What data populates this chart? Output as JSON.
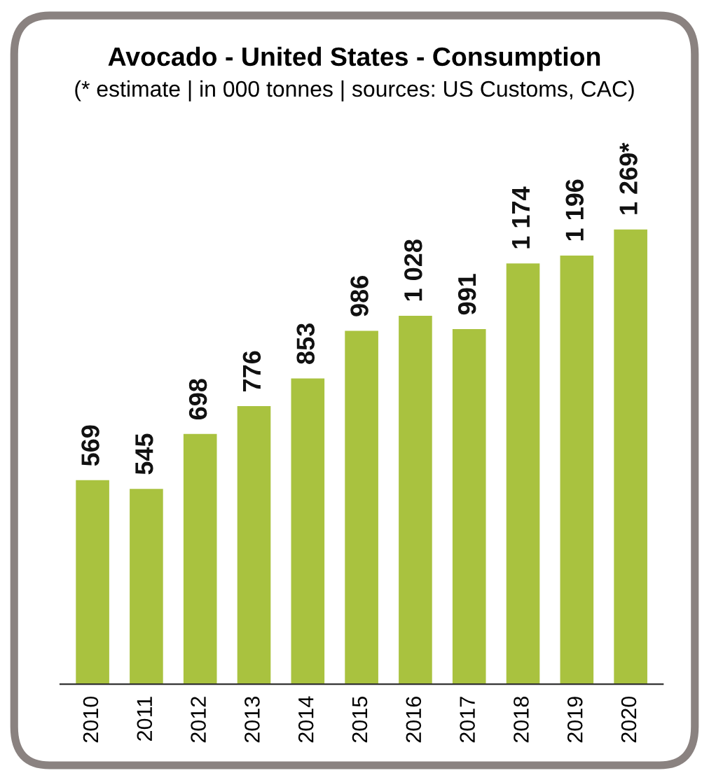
{
  "chart_data": {
    "type": "bar",
    "title": "Avocado - United States - Consumption",
    "subtitle": "(* estimate | in 000 tonnes | sources: US Customs, CAC)",
    "categories": [
      "2010",
      "2011",
      "2012",
      "2013",
      "2014",
      "2015",
      "2016",
      "2017",
      "2018",
      "2019",
      "2020"
    ],
    "values": [
      569,
      545,
      698,
      776,
      853,
      986,
      1028,
      991,
      1174,
      1196,
      1269
    ],
    "value_labels": [
      "569",
      "545",
      "698",
      "776",
      "853",
      "986",
      "1 028",
      "991",
      "1 174",
      "1 196",
      "1 269*"
    ],
    "color": "#a9c23f"
  }
}
